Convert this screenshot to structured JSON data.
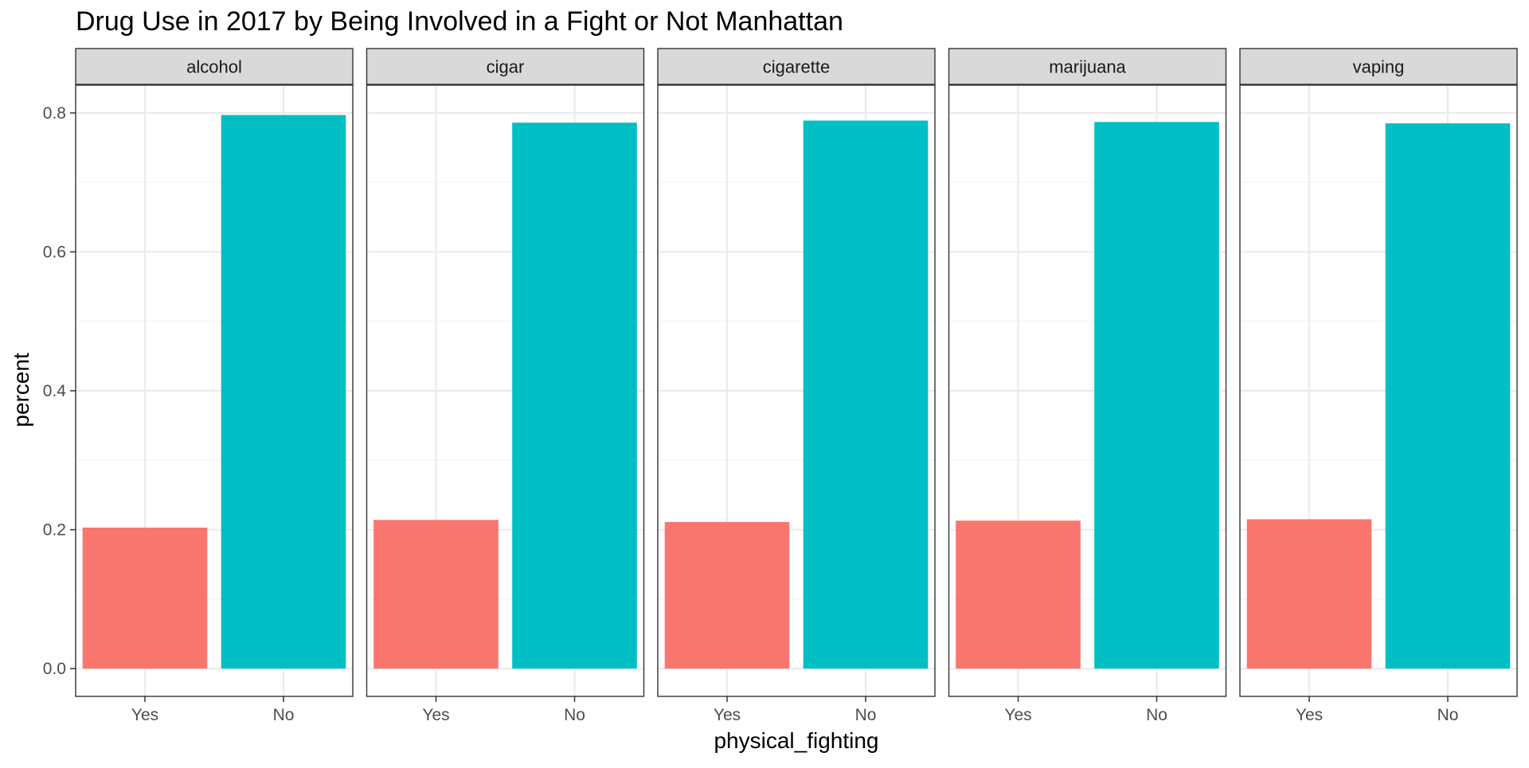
{
  "chart_data": {
    "type": "bar",
    "title": "Drug Use in 2017 by Being Involved in a Fight or Not Manhattan",
    "xlabel": "physical_fighting",
    "ylabel": "percent",
    "categories": [
      "Yes",
      "No"
    ],
    "category_colors": [
      "#F8766D",
      "#00BFC4"
    ],
    "ylim": [
      -0.04,
      0.84
    ],
    "yticks": [
      0.0,
      0.2,
      0.4,
      0.6,
      0.8
    ],
    "ytick_labels": [
      "0.0",
      "0.2",
      "0.4",
      "0.6",
      "0.8"
    ],
    "grid": true,
    "legend": "none",
    "facets": [
      {
        "label": "alcohol",
        "values": [
          0.203,
          0.797
        ]
      },
      {
        "label": "cigar",
        "values": [
          0.214,
          0.786
        ]
      },
      {
        "label": "cigarette",
        "values": [
          0.211,
          0.789
        ]
      },
      {
        "label": "marijuana",
        "values": [
          0.213,
          0.787
        ]
      },
      {
        "label": "vaping",
        "values": [
          0.215,
          0.785
        ]
      }
    ]
  }
}
